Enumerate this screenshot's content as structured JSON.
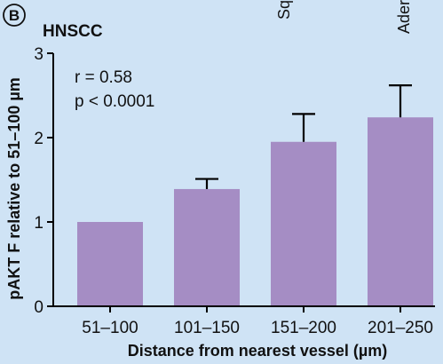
{
  "panel": {
    "letter": "B",
    "title": "HNSCC",
    "cut_labels": [
      "Sq",
      "Ader"
    ]
  },
  "annotations": {
    "r": "r = 0.58",
    "p": "p < 0.0001"
  },
  "colors": {
    "background": "#cfe3f5",
    "bar": "#a58dc4"
  },
  "chart_data": {
    "type": "bar",
    "title": "",
    "xlabel": "Distance from nearest vessel (µm)",
    "ylabel": "pAKT F relative to 51–100 µm",
    "categories": [
      "51–100",
      "101–150",
      "151–200",
      "201–250"
    ],
    "values": [
      1.0,
      1.39,
      1.95,
      2.24
    ],
    "error_upper": [
      0.0,
      0.12,
      0.33,
      0.38
    ],
    "ylim": [
      0,
      3
    ],
    "yticks": [
      0,
      1,
      2,
      3
    ],
    "grid": false
  }
}
